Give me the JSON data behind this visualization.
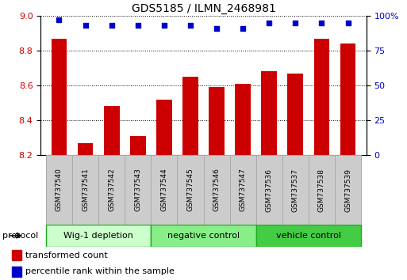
{
  "title": "GDS5185 / ILMN_2468981",
  "samples": [
    "GSM737540",
    "GSM737541",
    "GSM737542",
    "GSM737543",
    "GSM737544",
    "GSM737545",
    "GSM737546",
    "GSM737547",
    "GSM737536",
    "GSM737537",
    "GSM737538",
    "GSM737539"
  ],
  "transformed_count": [
    8.87,
    8.27,
    8.48,
    8.31,
    8.52,
    8.65,
    8.59,
    8.61,
    8.68,
    8.67,
    8.87,
    8.84
  ],
  "percentile_rank": [
    97,
    93,
    93,
    93,
    93,
    93,
    91,
    91,
    95,
    95,
    95,
    95
  ],
  "groups": [
    {
      "label": "Wig-1 depletion",
      "indices": [
        0,
        1,
        2,
        3
      ],
      "color": "#ccffcc"
    },
    {
      "label": "negative control",
      "indices": [
        4,
        5,
        6,
        7
      ],
      "color": "#88ee88"
    },
    {
      "label": "vehicle control",
      "indices": [
        8,
        9,
        10,
        11
      ],
      "color": "#44cc44"
    }
  ],
  "bar_color": "#cc0000",
  "dot_color": "#0000cc",
  "ylim_left": [
    8.2,
    9.0
  ],
  "ylim_right": [
    0,
    100
  ],
  "yticks_left": [
    8.2,
    8.4,
    8.6,
    8.8,
    9.0
  ],
  "yticks_right": [
    0,
    25,
    50,
    75,
    100
  ],
  "background_color": "#ffffff",
  "tick_label_box_color": "#cccccc",
  "tick_label_box_border": "#aaaaaa",
  "group_border_color": "#22aa22",
  "protocol_label": "protocol",
  "legend_entries": [
    {
      "color": "#cc0000",
      "label": "transformed count"
    },
    {
      "color": "#0000cc",
      "label": "percentile rank within the sample"
    }
  ]
}
